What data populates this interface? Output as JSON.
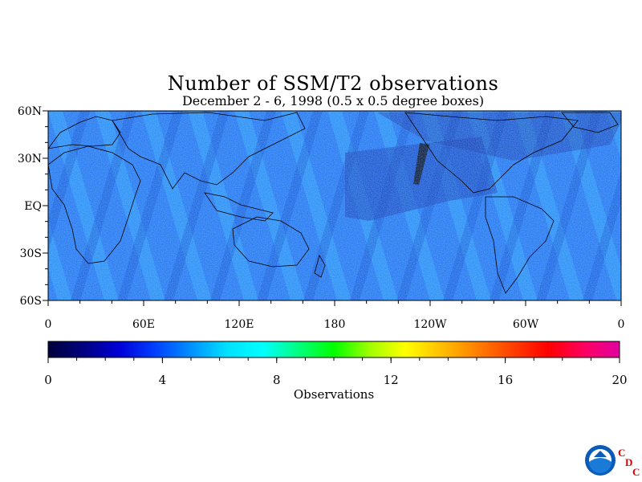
{
  "title": "Number of SSM/T2 observations",
  "subtitle": "December 2 - 6, 1998 (0.5 x 0.5 degree boxes)",
  "map": {
    "lat_labels": [
      "60N",
      "30N",
      "EQ",
      "30S",
      "60S"
    ],
    "lon_labels": [
      "0",
      "60E",
      "120E",
      "180",
      "120W",
      "60W",
      "0"
    ]
  },
  "colorbar": {
    "label": "Observations",
    "min": 0,
    "max": 20,
    "ticks": [
      "0",
      "4",
      "8",
      "12",
      "16",
      "20"
    ],
    "colors": [
      "#00003c",
      "#000080",
      "#0000d8",
      "#0040ff",
      "#0090ff",
      "#00e0ff",
      "#00ffff",
      "#00ff80",
      "#00ff00",
      "#a0ff00",
      "#ffff00",
      "#ffc000",
      "#ff8000",
      "#ff4000",
      "#ff0000",
      "#ff0060",
      "#e000a0"
    ]
  },
  "logo": {
    "name": "NOAA",
    "badge": [
      "C",
      "D",
      "C"
    ]
  }
}
